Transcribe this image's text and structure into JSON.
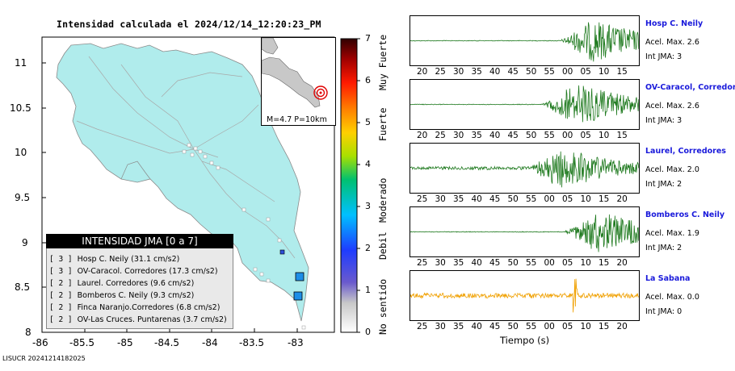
{
  "map": {
    "title": "Intensidad calculada el 2024/12/14_12:20:23_PM",
    "y_ticks": [
      "11",
      "10.5",
      "10",
      "9.5",
      "9",
      "8.5",
      "8"
    ],
    "x_ticks": [
      "-86",
      "-85.5",
      "-85",
      "-84.5",
      "-84",
      "-83.5",
      "-83"
    ],
    "inset_caption": "M=4.7 P=10km",
    "legend": {
      "header": "INTENSIDAD JMA [0 a 7]",
      "rows": [
        {
          "level": "[ 3 ]",
          "station": "Hosp C. Neily",
          "value": "(31.1 cm/s2)"
        },
        {
          "level": "[ 3 ]",
          "station": "OV-Caracol. Corredores",
          "value": "(17.3 cm/s2)"
        },
        {
          "level": "[ 2 ]",
          "station": "Laurel. Corredores",
          "value": "(9.6 cm/s2)"
        },
        {
          "level": "[ 2 ]",
          "station": "Bomberos C. Neily",
          "value": "(9.3 cm/s2)"
        },
        {
          "level": "[ 2 ]",
          "station": "Finca Naranjo.Corredores",
          "value": "(6.8 cm/s2)"
        },
        {
          "level": "[ 2 ]",
          "station": "OV-Las Cruces. Puntarenas",
          "value": "(3.7 cm/s2)"
        }
      ]
    },
    "colorbar": {
      "ticks": [
        "7",
        "6",
        "5",
        "4",
        "3",
        "2",
        "1",
        "0"
      ],
      "labels": [
        "Muy Fuerte",
        "Fuerte",
        "Moderado",
        "Debil",
        "No sentido"
      ]
    }
  },
  "waveforms": {
    "xlabel": "Tiempo (s)",
    "panels": [
      {
        "station": "Hosp C. Neily",
        "acc": "Acel. Max. 2.6",
        "jma": "Int JMA: 3",
        "color": "#1f7a1f",
        "ticks": [
          "20",
          "25",
          "30",
          "35",
          "40",
          "45",
          "50",
          "55",
          "00",
          "05",
          "10",
          "15"
        ],
        "onset": 0.66
      },
      {
        "station": "OV-Caracol, Corredore",
        "acc": "Acel. Max. 2.6",
        "jma": "Int JMA: 3",
        "color": "#1f7a1f",
        "ticks": [
          "20",
          "25",
          "30",
          "35",
          "40",
          "45",
          "50",
          "55",
          "00",
          "05",
          "10",
          "15"
        ],
        "onset": 0.58
      },
      {
        "station": "Laurel, Corredores",
        "acc": "Acel. Max. 2.0",
        "jma": "Int JMA: 2",
        "color": "#1f7a1f",
        "ticks": [
          "25",
          "30",
          "35",
          "40",
          "45",
          "50",
          "55",
          "00",
          "05",
          "10",
          "15",
          "20"
        ],
        "onset": 0.52
      },
      {
        "station": "Bomberos C. Neily",
        "acc": "Acel. Max. 1.9",
        "jma": "Int JMA: 2",
        "color": "#1f7a1f",
        "ticks": [
          "25",
          "30",
          "35",
          "40",
          "45",
          "50",
          "55",
          "00",
          "05",
          "10",
          "15",
          "20"
        ],
        "onset": 0.68
      },
      {
        "station": "La Sabana",
        "acc": "Acel. Max. 0.0",
        "jma": "Int JMA: 0",
        "color": "#f0a000",
        "ticks": [
          "25",
          "30",
          "35",
          "40",
          "45",
          "50",
          "55",
          "00",
          "05",
          "10",
          "15",
          "20"
        ],
        "onset": 0.0
      }
    ]
  },
  "footer": "LISUCR 20241214182025",
  "chart_data": {
    "type": "heatmap",
    "title": "Intensidad calculada el 2024/12/14_12:20:23_PM",
    "xlim": [
      -86.0,
      -82.5
    ],
    "ylim": [
      8.0,
      11.2
    ],
    "stations": [
      {
        "name": "Hosp C. Neily",
        "jma": 3,
        "pga": 31.1,
        "lon": -82.96,
        "lat": 8.64
      },
      {
        "name": "OV-Caracol. Corredores",
        "jma": 3,
        "pga": 17.3,
        "lon": -82.98,
        "lat": 8.42
      },
      {
        "name": "Laurel. Corredores",
        "jma": 2,
        "pga": 9.6,
        "lon": -83.17,
        "lat": 8.89
      },
      {
        "name": "Bomberos C. Neily",
        "jma": 2,
        "pga": 9.3,
        "lon": -83.17,
        "lat": 8.98
      }
    ]
  }
}
